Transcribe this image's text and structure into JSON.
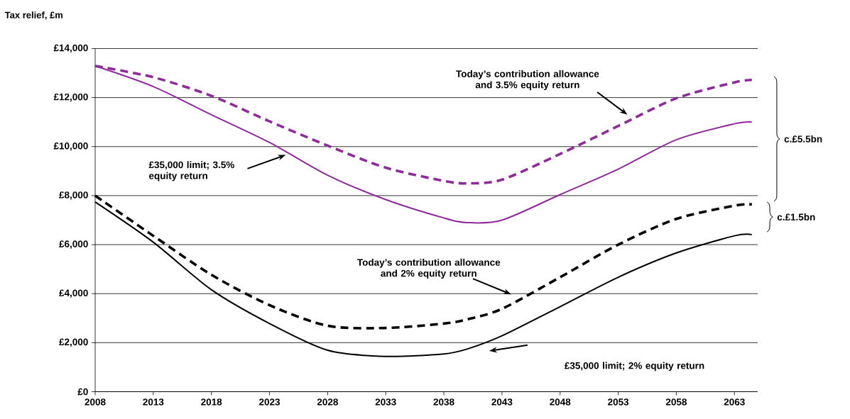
{
  "chart_data": {
    "type": "line",
    "ylabel": "Tax relief, £m",
    "x": [
      2008,
      2013,
      2018,
      2023,
      2028,
      2033,
      2038,
      2040,
      2043,
      2048,
      2053,
      2058,
      2063,
      2064.5
    ],
    "series": [
      {
        "color": "#8e2a99",
        "line_style": "dashed",
        "values": [
          13290,
          12830,
          12070,
          11030,
          10040,
          9140,
          8600,
          8500,
          8650,
          9700,
          10840,
          11970,
          12620,
          12720
        ]
      },
      {
        "color": "#8e2a99",
        "line_style": "solid",
        "values": [
          13290,
          12450,
          11300,
          10170,
          8830,
          7840,
          7090,
          6900,
          7000,
          8040,
          9080,
          10280,
          10930,
          11000
        ]
      },
      {
        "color": "#000000",
        "line_style": "dashed",
        "values": [
          8000,
          6360,
          4770,
          3530,
          2690,
          2600,
          2780,
          2950,
          3380,
          4670,
          6000,
          7050,
          7590,
          7640
        ]
      },
      {
        "color": "#000000",
        "line_style": "solid",
        "values": [
          7740,
          6100,
          4160,
          2780,
          1690,
          1440,
          1540,
          1740,
          2280,
          3470,
          4670,
          5660,
          6360,
          6410
        ]
      }
    ],
    "xlim": [
      2008,
      2065
    ],
    "xticks": [
      2008,
      2013,
      2018,
      2023,
      2028,
      2033,
      2038,
      2043,
      2048,
      2053,
      2058,
      2063
    ],
    "ylim": [
      0,
      14000
    ],
    "yticks": [
      {
        "value": 0,
        "label": "£0"
      },
      {
        "value": 2000,
        "label": "£2,000"
      },
      {
        "value": 4000,
        "label": "£4,000"
      },
      {
        "value": 6000,
        "label": "£6,000"
      },
      {
        "value": 8000,
        "label": "£8,000"
      },
      {
        "value": 10000,
        "label": "£10,000"
      },
      {
        "value": 12000,
        "label": "£12,000"
      },
      {
        "value": 14000,
        "label": "£14,000"
      }
    ],
    "grid": "y",
    "annotations": [
      "Today’s contribution allowance and 3.5% equity return",
      "£35,000 limit; 3.5% equity return",
      "Today’s contribution allowance and 2% equity return",
      "£35,000 limit; 2% equity return",
      "c.£5.5bn",
      "c.£1.5bn"
    ]
  }
}
